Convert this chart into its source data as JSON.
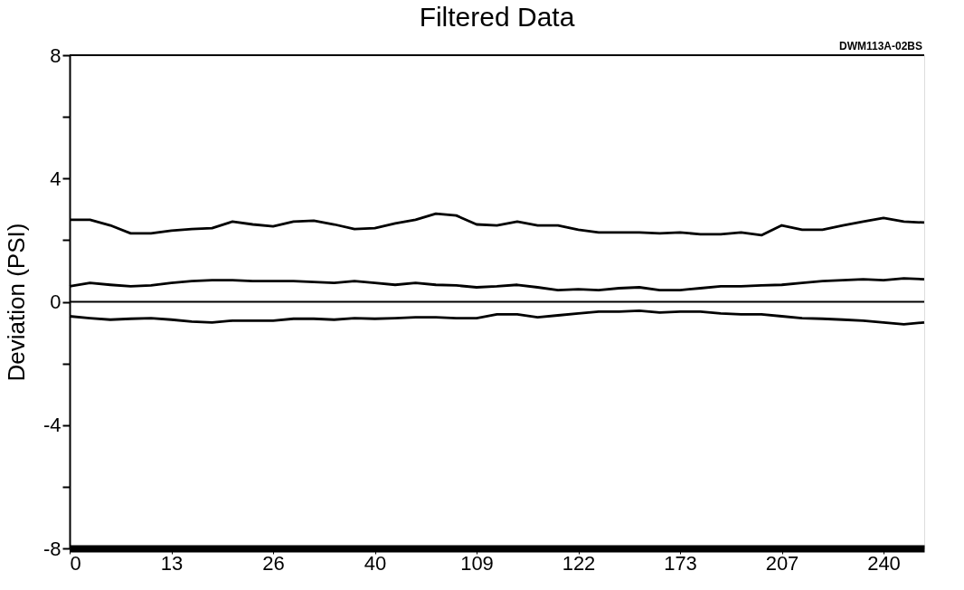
{
  "chart_data": {
    "type": "line",
    "title": "Filtered Data",
    "ylabel": "Deviation (PSI)",
    "annotations": [
      "DWM113A-02BS"
    ],
    "categories": [
      "0",
      null,
      null,
      null,
      null,
      "13",
      null,
      null,
      null,
      null,
      "26",
      null,
      null,
      null,
      null,
      "40",
      null,
      null,
      null,
      null,
      "109",
      null,
      null,
      null,
      null,
      "122",
      null,
      null,
      null,
      null,
      "173",
      null,
      null,
      null,
      null,
      "207",
      null,
      null,
      null,
      null,
      "240",
      null,
      null
    ],
    "series": [
      {
        "color": "#000000",
        "values": [
          2.66,
          2.66,
          2.48,
          2.22,
          2.22,
          2.31,
          2.36,
          2.39,
          2.6,
          2.51,
          2.45,
          2.6,
          2.63,
          2.51,
          2.36,
          2.39,
          2.54,
          2.66,
          2.86,
          2.8,
          2.51,
          2.48,
          2.6,
          2.48,
          2.48,
          2.34,
          2.25,
          2.25,
          2.25,
          2.22,
          2.25,
          2.19,
          2.19,
          2.25,
          2.16,
          2.48,
          2.34,
          2.34,
          2.48,
          2.6,
          2.72,
          2.6,
          2.57
        ]
      },
      {
        "color": "#000000",
        "values": [
          0.5,
          0.61,
          0.55,
          0.5,
          0.53,
          0.61,
          0.67,
          0.7,
          0.7,
          0.67,
          0.67,
          0.67,
          0.64,
          0.61,
          0.67,
          0.61,
          0.55,
          0.61,
          0.55,
          0.53,
          0.47,
          0.5,
          0.55,
          0.47,
          0.38,
          0.41,
          0.38,
          0.44,
          0.47,
          0.38,
          0.38,
          0.44,
          0.5,
          0.5,
          0.53,
          0.55,
          0.61,
          0.67,
          0.7,
          0.73,
          0.7,
          0.76,
          0.73
        ]
      },
      {
        "color": "#000000",
        "values": [
          -0.47,
          -0.53,
          -0.58,
          -0.55,
          -0.53,
          -0.58,
          -0.64,
          -0.67,
          -0.61,
          -0.61,
          -0.61,
          -0.55,
          -0.55,
          -0.58,
          -0.53,
          -0.55,
          -0.53,
          -0.5,
          -0.5,
          -0.53,
          -0.53,
          -0.41,
          -0.41,
          -0.5,
          -0.44,
          -0.38,
          -0.32,
          -0.32,
          -0.29,
          -0.35,
          -0.32,
          -0.32,
          -0.38,
          -0.41,
          -0.41,
          -0.47,
          -0.53,
          -0.55,
          -0.58,
          -0.61,
          -0.67,
          -0.73,
          -0.67
        ]
      }
    ],
    "ylim": [
      -8,
      8
    ],
    "yticks": [
      -8,
      {
        "value": -6,
        "label": null
      },
      -4,
      {
        "value": -2,
        "label": null
      },
      0,
      {
        "value": 2,
        "label": null
      },
      4,
      {
        "value": 6,
        "label": null
      },
      8
    ],
    "ref_lines": [
      {
        "axis": "y",
        "value": 0,
        "color": "#000000"
      }
    ],
    "grid": false,
    "legend": false,
    "marker": "none",
    "line_style": "solid"
  }
}
